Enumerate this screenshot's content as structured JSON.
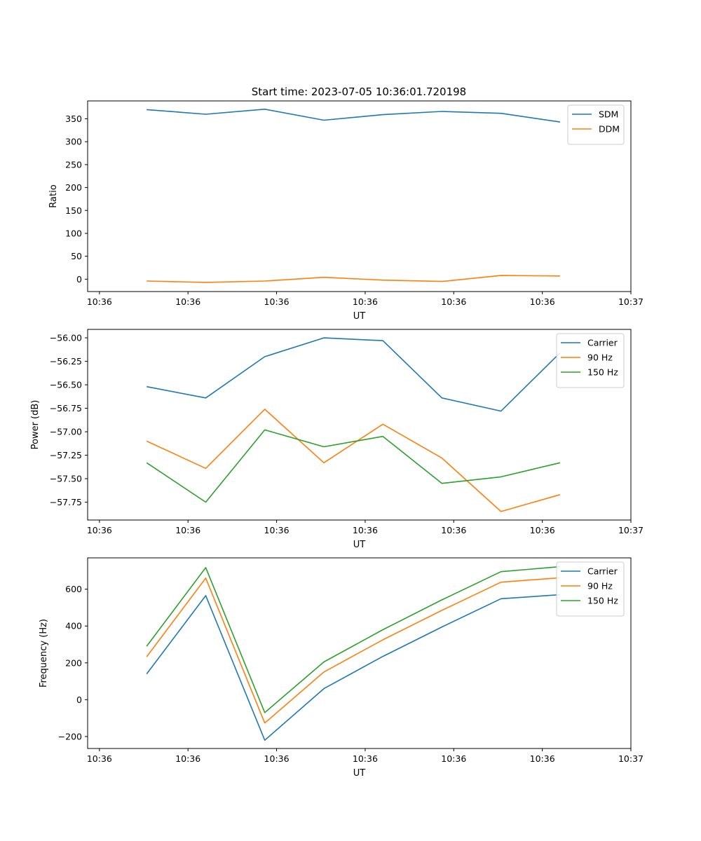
{
  "figure_title": "Start time: 2023-07-05 10:36:01.720198",
  "colors": {
    "blue": "#1f77b4",
    "orange": "#ff7f0e",
    "green": "#2ca02c"
  },
  "chart_data": [
    {
      "type": "line",
      "title": "Start time: 2023-07-05 10:36:01.720198",
      "xlabel": "UT",
      "ylabel": "Ratio",
      "xlim": [
        0,
        9.2
      ],
      "xticks": [
        0.2,
        1.7,
        3.2,
        4.7,
        6.2,
        7.7,
        9.2
      ],
      "xtick_labels": [
        "10:36",
        "10:36",
        "10:36",
        "10:36",
        "10:36",
        "10:36",
        "10:37"
      ],
      "ylim": [
        -27,
        389
      ],
      "yticks": [
        0,
        50,
        100,
        150,
        200,
        250,
        300,
        350
      ],
      "ytick_labels": [
        "0",
        "50",
        "100",
        "150",
        "200",
        "250",
        "300",
        "350"
      ],
      "x": [
        1,
        2,
        3,
        4,
        5,
        6,
        7,
        8
      ],
      "legend": "top-right",
      "series": [
        {
          "name": "SDM",
          "color": "#1f77b4",
          "values": [
            370,
            360,
            371,
            347,
            359,
            366,
            362,
            343
          ]
        },
        {
          "name": "DDM",
          "color": "#ff7f0e",
          "values": [
            -4,
            -7,
            -4,
            4,
            -2,
            -5,
            8,
            7
          ]
        }
      ]
    },
    {
      "type": "line",
      "title": "",
      "xlabel": "UT",
      "ylabel": "Power (dB)",
      "xlim": [
        0,
        9.2
      ],
      "xticks": [
        0.2,
        1.7,
        3.2,
        4.7,
        6.2,
        7.7,
        9.2
      ],
      "xtick_labels": [
        "10:36",
        "10:36",
        "10:36",
        "10:36",
        "10:36",
        "10:36",
        "10:37"
      ],
      "ylim": [
        -57.94,
        -55.91
      ],
      "yticks": [
        -56.0,
        -56.25,
        -56.5,
        -56.75,
        -57.0,
        -57.25,
        -57.5,
        -57.75
      ],
      "ytick_labels": [
        "−56.00",
        "−56.25",
        "−56.50",
        "−56.75",
        "−57.00",
        "−57.25",
        "−57.50",
        "−57.75"
      ],
      "x": [
        1,
        2,
        3,
        4,
        5,
        6,
        7,
        8
      ],
      "legend": "top-right",
      "series": [
        {
          "name": "Carrier",
          "color": "#1f77b4",
          "values": [
            -56.52,
            -56.64,
            -56.2,
            -56.0,
            -56.03,
            -56.64,
            -56.78,
            -56.16
          ]
        },
        {
          "name": "90 Hz",
          "color": "#ff7f0e",
          "values": [
            -57.1,
            -57.39,
            -56.76,
            -57.33,
            -56.92,
            -57.28,
            -57.85,
            -57.67
          ]
        },
        {
          "name": "150 Hz",
          "color": "#2ca02c",
          "values": [
            -57.33,
            -57.75,
            -56.98,
            -57.16,
            -57.05,
            -57.55,
            -57.48,
            -57.33
          ]
        }
      ]
    },
    {
      "type": "line",
      "title": "",
      "xlabel": "UT",
      "ylabel": "Frequency (Hz)",
      "xlim": [
        0,
        9.2
      ],
      "xticks": [
        0.2,
        1.7,
        3.2,
        4.7,
        6.2,
        7.7,
        9.2
      ],
      "xtick_labels": [
        "10:36",
        "10:36",
        "10:36",
        "10:36",
        "10:36",
        "10:36",
        "10:37"
      ],
      "ylim": [
        -265,
        770
      ],
      "yticks": [
        -200,
        0,
        200,
        400,
        600
      ],
      "ytick_labels": [
        "−200",
        "0",
        "200",
        "400",
        "600"
      ],
      "x": [
        1,
        2,
        3,
        4,
        5,
        6,
        7,
        8
      ],
      "legend": "top-right",
      "series": [
        {
          "name": "Carrier",
          "color": "#1f77b4",
          "values": [
            140,
            565,
            -220,
            60,
            235,
            395,
            548,
            570
          ]
        },
        {
          "name": "90 Hz",
          "color": "#ff7f0e",
          "values": [
            233,
            660,
            -127,
            150,
            325,
            485,
            638,
            662
          ]
        },
        {
          "name": "150 Hz",
          "color": "#2ca02c",
          "values": [
            290,
            717,
            -70,
            205,
            380,
            542,
            695,
            722
          ]
        }
      ]
    }
  ]
}
